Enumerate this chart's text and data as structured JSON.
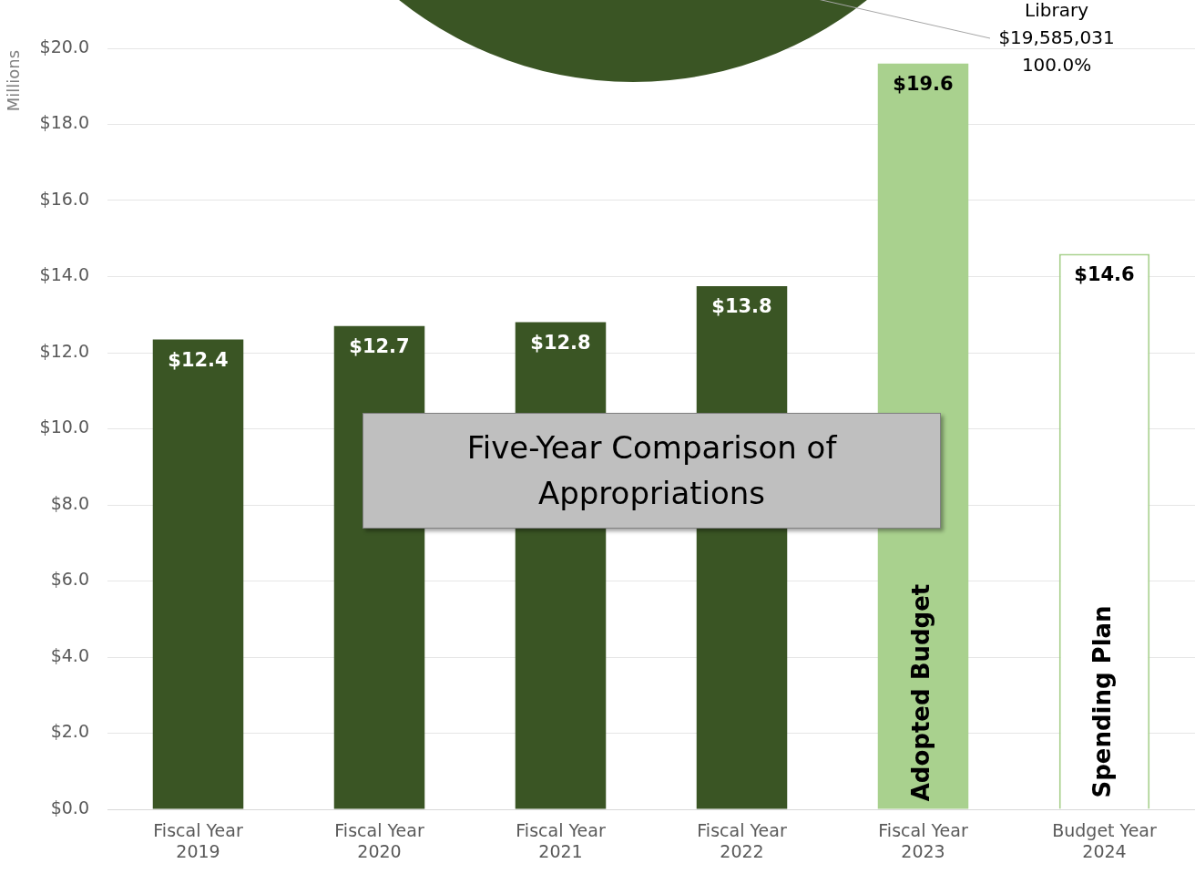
{
  "chart_data": [
    {
      "type": "pie",
      "categories": [
        "Library"
      ],
      "values": [
        19585031
      ],
      "colors": [
        "#3a5524"
      ],
      "value_labels": [
        "$19,585,031\n100.0%"
      ]
    },
    {
      "type": "bar",
      "title": "Five-Year Comparison of Appropriations",
      "ylabel": "Millions",
      "categories": [
        "Fiscal Year 2019",
        "Fiscal Year 2020",
        "Fiscal Year 2021",
        "Fiscal Year 2022",
        "Fiscal Year 2023",
        "Budget Year 2024"
      ],
      "values": [
        12.35,
        12.7,
        12.8,
        13.75,
        19.6,
        14.6
      ],
      "colors": [
        "#3a5524",
        "#3a5524",
        "#3a5524",
        "#3a5524",
        "#a9d18e",
        "#ffffff"
      ],
      "value_labels": [
        "$12.4",
        "$12.7",
        "$12.8",
        "$13.8",
        "$19.6",
        "$14.6"
      ],
      "ylim": [
        0,
        20
      ],
      "yticks": [
        {
          "value": 0,
          "label": "$0.0"
        },
        {
          "value": 2,
          "label": "$2.0"
        },
        {
          "value": 4,
          "label": "$4.0"
        },
        {
          "value": 6,
          "label": "$6.0"
        },
        {
          "value": 8,
          "label": "$8.0"
        },
        {
          "value": 10,
          "label": "$10.0"
        },
        {
          "value": 12,
          "label": "$12.0"
        },
        {
          "value": 14,
          "label": "$14.0"
        },
        {
          "value": 16,
          "label": "$16.0"
        },
        {
          "value": 18,
          "label": "$18.0"
        },
        {
          "value": 20,
          "label": "$20.0"
        }
      ],
      "grid": "y",
      "legend": false,
      "annotations": [
        "Adopted Budget",
        "Spending Plan"
      ]
    }
  ]
}
